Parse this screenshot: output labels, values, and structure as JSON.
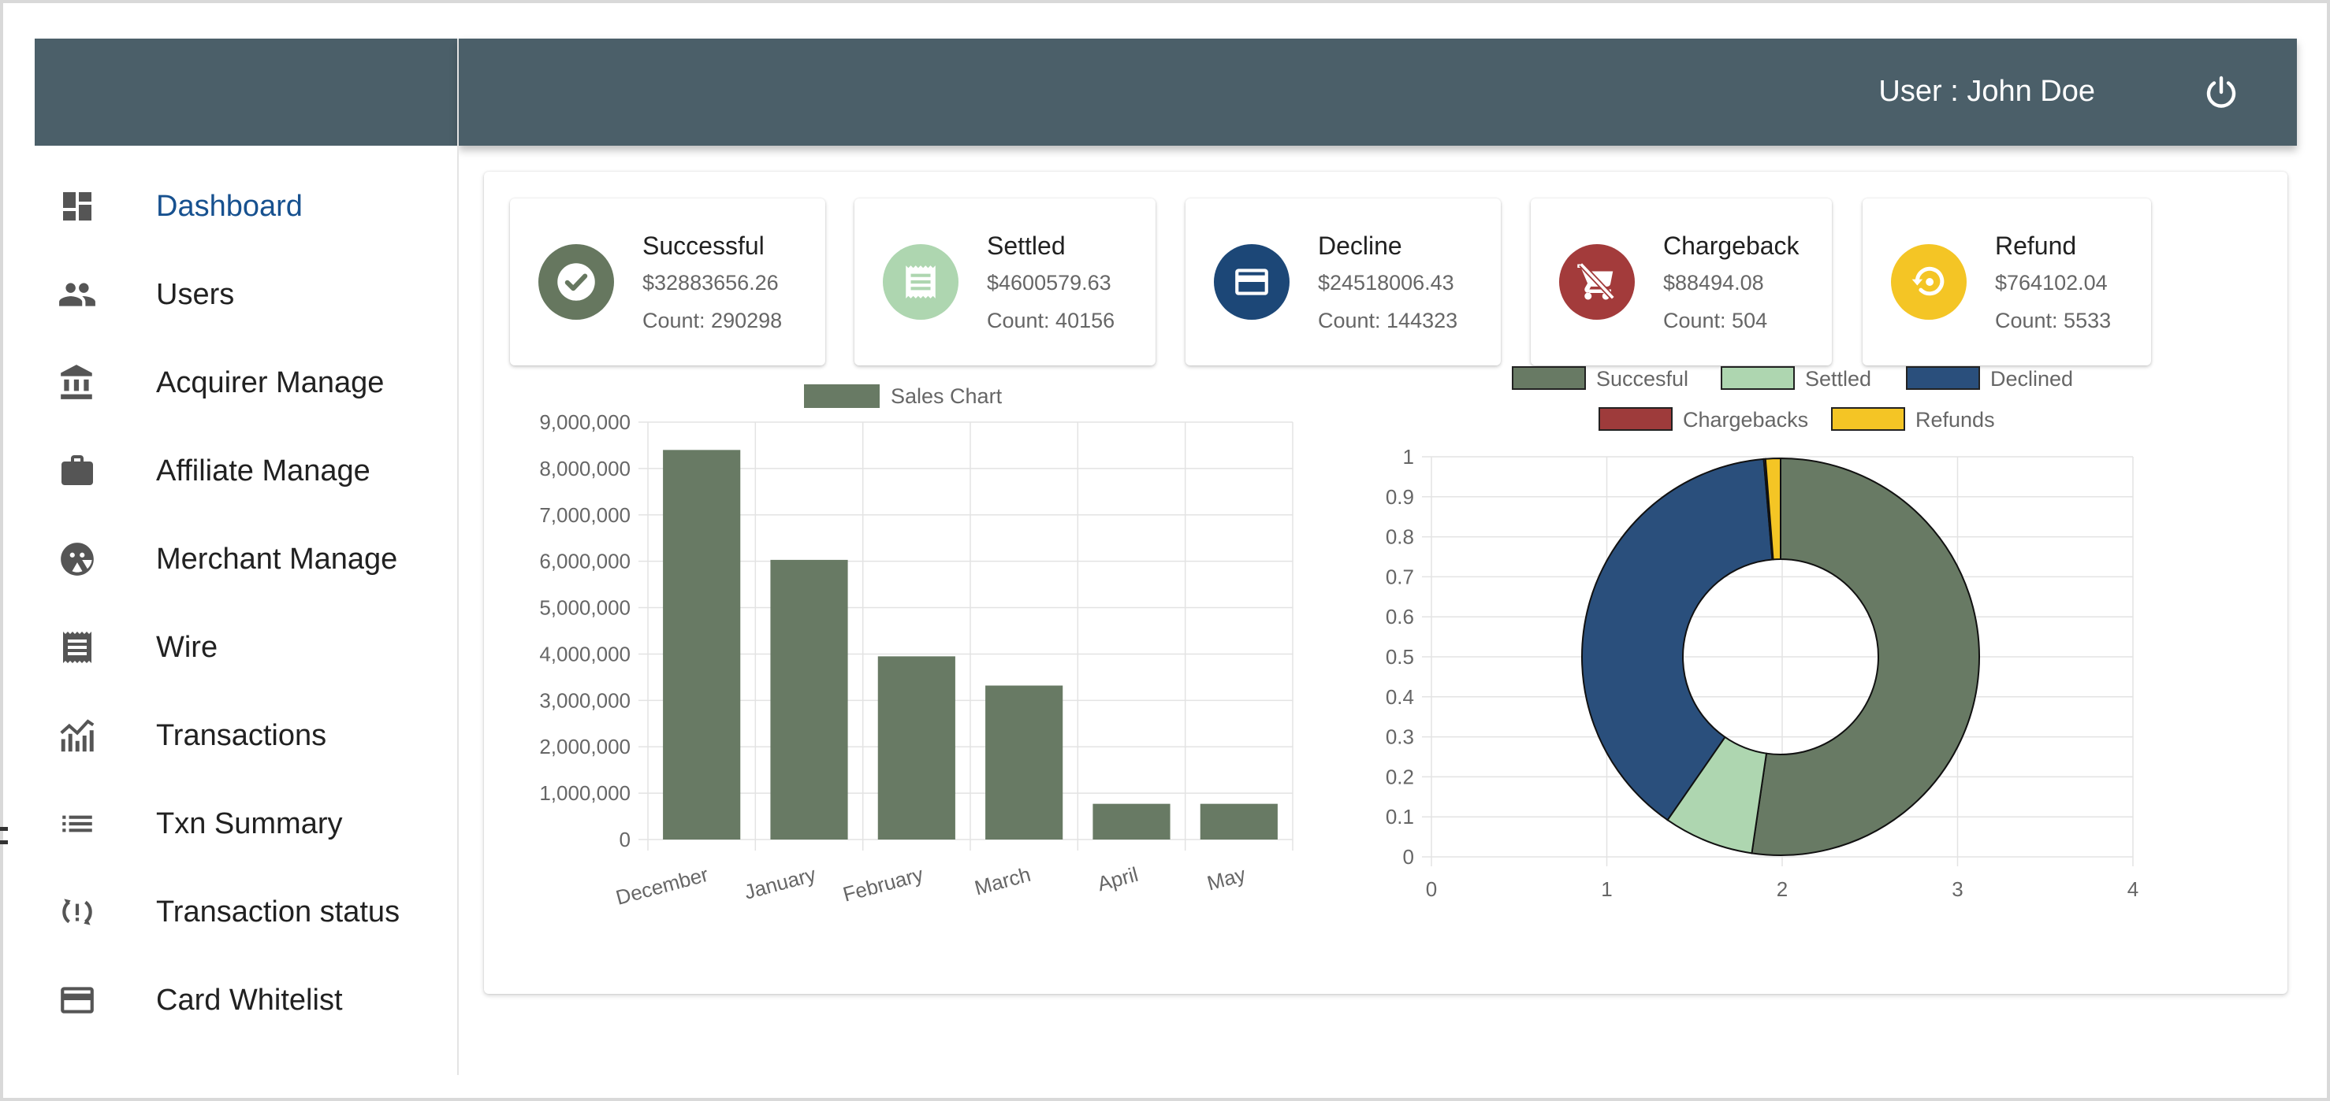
{
  "header": {
    "user_label": "User : John Doe",
    "power_icon": "power-icon"
  },
  "sidebar": {
    "items": [
      {
        "label": "Dashboard",
        "icon": "dashboard-icon",
        "active": true
      },
      {
        "label": "Users",
        "icon": "users-icon",
        "active": false
      },
      {
        "label": "Acquirer Manage",
        "icon": "bank-icon",
        "active": false
      },
      {
        "label": "Affiliate Manage",
        "icon": "briefcase-icon",
        "active": false
      },
      {
        "label": "Merchant Manage",
        "icon": "merchant-icon",
        "active": false
      },
      {
        "label": "Wire",
        "icon": "receipt-icon",
        "active": false
      },
      {
        "label": "Transactions",
        "icon": "analytics-icon",
        "active": false
      },
      {
        "label": "Txn Summary",
        "icon": "list-icon",
        "active": false
      },
      {
        "label": "Transaction status",
        "icon": "status-icon",
        "active": false
      },
      {
        "label": "Card Whitelist",
        "icon": "credit-card-icon",
        "active": false
      }
    ]
  },
  "stats": [
    {
      "title": "Successful",
      "amount": "$32883656.26",
      "count": "Count: 290298",
      "color": "#66775f",
      "icon": "check-circle-icon"
    },
    {
      "title": "Settled",
      "amount": "$4600579.63",
      "count": "Count: 40156",
      "color": "#aed6b0",
      "icon": "receipt-icon"
    },
    {
      "title": "Decline",
      "amount": "$24518006.43",
      "count": "Count: 144323",
      "color": "#1c4777",
      "icon": "credit-card-icon"
    },
    {
      "title": "Chargeback",
      "amount": "$88494.08",
      "count": "Count: 504",
      "color": "#a33b3b",
      "icon": "remove-cart-icon"
    },
    {
      "title": "Refund",
      "amount": "$764102.04",
      "count": "Count: 5533",
      "color": "#f4c525",
      "icon": "refund-icon"
    }
  ],
  "chart_data": [
    {
      "type": "bar",
      "legend": "Sales Chart",
      "legend_position": "top",
      "categories": [
        "December",
        "January",
        "February",
        "March",
        "April",
        "May"
      ],
      "values": [
        8400000,
        6030000,
        3950000,
        3320000,
        770000,
        770000
      ],
      "ylim": [
        0,
        9000000
      ],
      "yticks": [
        "9,000,000",
        "8,000,000",
        "7,000,000",
        "6,000,000",
        "5,000,000",
        "4,000,000",
        "3,000,000",
        "2,000,000",
        "1,000,000",
        "0"
      ],
      "color": "#687a64",
      "grid": true
    },
    {
      "type": "pie",
      "variant": "doughnut",
      "legend_position": "top",
      "labels": [
        "Succesful",
        "Settled",
        "Declined",
        "Chargebacks",
        "Refunds"
      ],
      "values": [
        32883656.26,
        4600579.63,
        24518006.43,
        88494.08,
        764102.04
      ],
      "colors": [
        "#687a64",
        "#aed6b0",
        "#2a4f7c",
        "#9e3b3b",
        "#f4c525"
      ],
      "xticks": [
        "0",
        "1",
        "2",
        "3",
        "4"
      ],
      "yticks": [
        "1",
        "0.9",
        "0.8",
        "0.7",
        "0.6",
        "0.5",
        "0.4",
        "0.3",
        "0.2",
        "0.1",
        "0"
      ],
      "grid": true
    }
  ]
}
